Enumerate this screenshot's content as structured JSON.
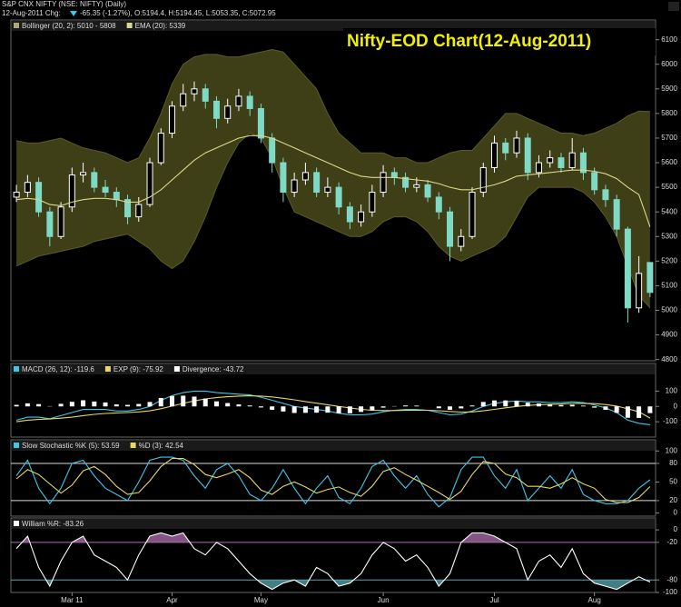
{
  "header": {
    "symbol": "S&P CNX NIFTY (NSE: NIFTY) (Daily)",
    "date": "12-Aug-2011 Chg:",
    "change": "-65.35 (-1.27%), O:5194.4, H:5194.45, L:5053.35, C:5072.95"
  },
  "chart_data": [
    {
      "type": "candlestick",
      "title": "Nifty-EOD Chart(12-Aug-2011)",
      "categories": [
        null,
        null,
        null,
        null,
        null,
        "Mar 11",
        null,
        null,
        null,
        null,
        null,
        null,
        null,
        null,
        "Apr",
        null,
        null,
        null,
        null,
        null,
        null,
        null,
        "May",
        null,
        null,
        null,
        null,
        null,
        null,
        null,
        null,
        null,
        null,
        "Jun",
        null,
        null,
        null,
        null,
        null,
        null,
        null,
        null,
        null,
        "Jul",
        null,
        null,
        null,
        null,
        null,
        null,
        null,
        null,
        "Aug",
        null,
        null,
        null,
        null,
        null
      ],
      "open": [
        5460,
        5480,
        5520,
        5400,
        5300,
        5420,
        5550,
        5560,
        5500,
        5480,
        5450,
        5380,
        5430,
        5600,
        5720,
        5830,
        5880,
        5900,
        5850,
        5780,
        5830,
        5870,
        5820,
        5700,
        5600,
        5480,
        5530,
        5560,
        5480,
        5500,
        5420,
        5360,
        5400,
        5480,
        5560,
        5540,
        5500,
        5510,
        5460,
        5400,
        5260,
        5300,
        5480,
        5580,
        5680,
        5640,
        5700,
        5560,
        5600,
        5620,
        5580,
        5640,
        5560,
        5490,
        5450,
        5330,
        5010,
        5194.4
      ],
      "high": [
        5510,
        5550,
        5540,
        5420,
        5440,
        5580,
        5600,
        5580,
        5530,
        5500,
        5470,
        5460,
        5620,
        5740,
        5850,
        5920,
        5930,
        5920,
        5870,
        5860,
        5900,
        5890,
        5840,
        5720,
        5620,
        5560,
        5600,
        5580,
        5540,
        5520,
        5440,
        5430,
        5510,
        5590,
        5580,
        5560,
        5540,
        5530,
        5480,
        5420,
        5330,
        5500,
        5600,
        5710,
        5700,
        5730,
        5720,
        5630,
        5650,
        5640,
        5700,
        5660,
        5580,
        5510,
        5470,
        5340,
        5220,
        5194.45
      ],
      "low": [
        5440,
        5460,
        5380,
        5260,
        5290,
        5400,
        5520,
        5480,
        5460,
        5420,
        5350,
        5360,
        5420,
        5590,
        5700,
        5810,
        5850,
        5820,
        5740,
        5760,
        5810,
        5790,
        5680,
        5560,
        5440,
        5460,
        5510,
        5460,
        5460,
        5390,
        5330,
        5340,
        5380,
        5460,
        5510,
        5480,
        5480,
        5440,
        5370,
        5200,
        5240,
        5290,
        5460,
        5560,
        5610,
        5620,
        5530,
        5540,
        5580,
        5560,
        5570,
        5530,
        5470,
        5420,
        5300,
        4950,
        4990,
        5053.35
      ],
      "close": [
        5480,
        5520,
        5400,
        5300,
        5420,
        5550,
        5560,
        5500,
        5480,
        5450,
        5380,
        5430,
        5600,
        5720,
        5830,
        5880,
        5900,
        5850,
        5780,
        5830,
        5870,
        5820,
        5700,
        5600,
        5480,
        5530,
        5560,
        5480,
        5500,
        5420,
        5360,
        5400,
        5480,
        5560,
        5540,
        5500,
        5510,
        5460,
        5400,
        5260,
        5300,
        5480,
        5580,
        5680,
        5640,
        5700,
        5560,
        5600,
        5620,
        5580,
        5640,
        5560,
        5490,
        5450,
        5330,
        5010,
        5150,
        5072.95
      ],
      "up_color": "#ffffff",
      "down_color": "#7fd9c4",
      "bands": {
        "name": "Bollinger (20, 2): 5010 - 5808",
        "color": "#46461a",
        "legend_color": "#a8a878",
        "upper": [
          5690,
          5680,
          5680,
          5690,
          5700,
          5680,
          5660,
          5650,
          5640,
          5620,
          5600,
          5620,
          5700,
          5800,
          5920,
          6000,
          6030,
          6040,
          6040,
          6030,
          6030,
          6040,
          6050,
          6060,
          6050,
          6000,
          5950,
          5900,
          5800,
          5720,
          5680,
          5640,
          5640,
          5640,
          5620,
          5620,
          5600,
          5600,
          5620,
          5640,
          5650,
          5650,
          5700,
          5750,
          5800,
          5800,
          5780,
          5760,
          5740,
          5720,
          5720,
          5710,
          5720,
          5740,
          5760,
          5790,
          5810,
          5808
        ],
        "lower": [
          5180,
          5200,
          5220,
          5230,
          5240,
          5250,
          5260,
          5280,
          5290,
          5300,
          5310,
          5280,
          5250,
          5200,
          5170,
          5200,
          5280,
          5380,
          5500,
          5600,
          5680,
          5720,
          5700,
          5620,
          5500,
          5400,
          5380,
          5360,
          5340,
          5320,
          5300,
          5300,
          5320,
          5360,
          5380,
          5380,
          5360,
          5320,
          5260,
          5220,
          5200,
          5220,
          5240,
          5260,
          5300,
          5380,
          5460,
          5500,
          5500,
          5500,
          5500,
          5480,
          5440,
          5380,
          5300,
          5180,
          5060,
          5010
        ]
      },
      "series": [
        {
          "name": "EMA (20): 5339",
          "color": "#d8d890",
          "style": "line",
          "values": [
            5450,
            5455,
            5450,
            5430,
            5425,
            5440,
            5450,
            5455,
            5455,
            5450,
            5440,
            5440,
            5460,
            5490,
            5530,
            5570,
            5610,
            5640,
            5660,
            5680,
            5700,
            5710,
            5710,
            5700,
            5680,
            5660,
            5640,
            5620,
            5600,
            5580,
            5560,
            5545,
            5540,
            5540,
            5540,
            5535,
            5530,
            5525,
            5515,
            5500,
            5490,
            5490,
            5500,
            5510,
            5525,
            5545,
            5550,
            5555,
            5560,
            5565,
            5570,
            5570,
            5565,
            5555,
            5535,
            5500,
            5470,
            5339
          ]
        }
      ],
      "ylim": [
        4795,
        6180
      ],
      "yticks": [
        4800,
        4900,
        5000,
        5100,
        5200,
        5300,
        5400,
        5500,
        5600,
        5700,
        5800,
        5900,
        6000,
        6100
      ]
    },
    {
      "type": "line",
      "series": [
        {
          "name": "MACD (26, 12): -119.6",
          "color": "#3cc8e8",
          "style": "line",
          "values": [
            -90,
            -70,
            -70,
            -80,
            -60,
            -40,
            -20,
            -20,
            -20,
            -30,
            -30,
            -20,
            0,
            40,
            70,
            90,
            100,
            100,
            90,
            85,
            80,
            75,
            60,
            40,
            20,
            0,
            -10,
            -20,
            -30,
            -45,
            -55,
            -55,
            -50,
            -35,
            -25,
            -20,
            -20,
            -25,
            -40,
            -55,
            -50,
            -30,
            0,
            20,
            30,
            35,
            30,
            30,
            25,
            25,
            30,
            25,
            10,
            -10,
            -40,
            -90,
            -110,
            -119.6
          ]
        },
        {
          "name": "EXP (9): -75.92",
          "color": "#e8d860",
          "style": "line",
          "values": [
            -100,
            -90,
            -85,
            -82,
            -77,
            -70,
            -60,
            -52,
            -46,
            -43,
            -40,
            -36,
            -29,
            -15,
            2,
            20,
            36,
            49,
            57,
            63,
            67,
            69,
            67,
            62,
            53,
            43,
            32,
            21,
            11,
            0,
            -10,
            -19,
            -25,
            -27,
            -27,
            -26,
            -25,
            -25,
            -28,
            -33,
            -37,
            -36,
            -29,
            -19,
            -9,
            0,
            6,
            11,
            14,
            16,
            19,
            20,
            18,
            12,
            2,
            -16,
            -35,
            -75.92
          ]
        },
        {
          "name": "Divergence: -43.72",
          "color": "#ffffff",
          "style": "bar",
          "values": [
            10,
            20,
            15,
            2,
            17,
            30,
            40,
            32,
            26,
            13,
            10,
            16,
            29,
            55,
            68,
            70,
            64,
            51,
            33,
            22,
            13,
            6,
            -7,
            -22,
            -33,
            -43,
            -42,
            -41,
            -41,
            -45,
            -45,
            -36,
            -25,
            -8,
            2,
            6,
            5,
            0,
            -12,
            -22,
            -13,
            6,
            29,
            39,
            39,
            35,
            24,
            19,
            11,
            9,
            11,
            5,
            -8,
            -22,
            -42,
            -74,
            -75,
            -43.72
          ]
        }
      ],
      "ylim": [
        -200,
        280
      ],
      "yticks": [
        -100,
        0,
        100
      ]
    },
    {
      "type": "line",
      "series": [
        {
          "name": "Slow Stochastic %K (5): 53.59",
          "color": "#3cc8e8",
          "style": "line",
          "values": [
            60,
            85,
            40,
            15,
            40,
            80,
            85,
            60,
            40,
            30,
            20,
            50,
            85,
            90,
            90,
            85,
            60,
            40,
            70,
            80,
            60,
            30,
            20,
            40,
            70,
            40,
            15,
            40,
            60,
            25,
            15,
            40,
            75,
            85,
            60,
            40,
            60,
            30,
            10,
            25,
            70,
            90,
            90,
            60,
            40,
            70,
            20,
            40,
            60,
            40,
            70,
            30,
            20,
            15,
            15,
            20,
            40,
            53.59
          ]
        },
        {
          "name": "%D (3): 42.54",
          "color": "#e8d860",
          "style": "line",
          "values": [
            55,
            70,
            62,
            47,
            32,
            45,
            68,
            75,
            62,
            43,
            30,
            33,
            52,
            75,
            88,
            88,
            78,
            62,
            57,
            63,
            70,
            57,
            37,
            30,
            43,
            50,
            42,
            32,
            38,
            42,
            33,
            27,
            43,
            67,
            73,
            62,
            53,
            43,
            33,
            22,
            35,
            62,
            83,
            80,
            63,
            57,
            43,
            43,
            40,
            47,
            57,
            47,
            40,
            22,
            17,
            17,
            25,
            42.54
          ]
        }
      ],
      "levels": [
        80,
        20
      ],
      "level_colors": [
        "#dddddd",
        "#dddddd"
      ],
      "ylim": [
        -5,
        118
      ],
      "yticks": [
        0,
        20,
        50,
        80,
        100
      ]
    },
    {
      "type": "line",
      "series": [
        {
          "name": "William %R: -83.26",
          "color": "#ffffff",
          "style": "line",
          "values": [
            -30,
            -10,
            -60,
            -90,
            -50,
            -20,
            -10,
            -40,
            -50,
            -60,
            -80,
            -40,
            -10,
            -5,
            -10,
            -5,
            -30,
            -40,
            -20,
            -30,
            -50,
            -70,
            -85,
            -95,
            -85,
            -80,
            -90,
            -60,
            -70,
            -90,
            -85,
            -70,
            -40,
            -20,
            -30,
            -50,
            -40,
            -60,
            -90,
            -70,
            -20,
            -5,
            -5,
            -10,
            -20,
            -30,
            -80,
            -50,
            -40,
            -60,
            -30,
            -70,
            -85,
            -90,
            -95,
            -85,
            -75,
            -83.26
          ]
        }
      ],
      "levels": [
        -20,
        -80
      ],
      "level_colors": [
        "#b070b0",
        "#5aa8b0"
      ],
      "ylim": [
        -100,
        19
      ],
      "yticks": [
        0,
        -20,
        -80,
        -100
      ]
    }
  ]
}
